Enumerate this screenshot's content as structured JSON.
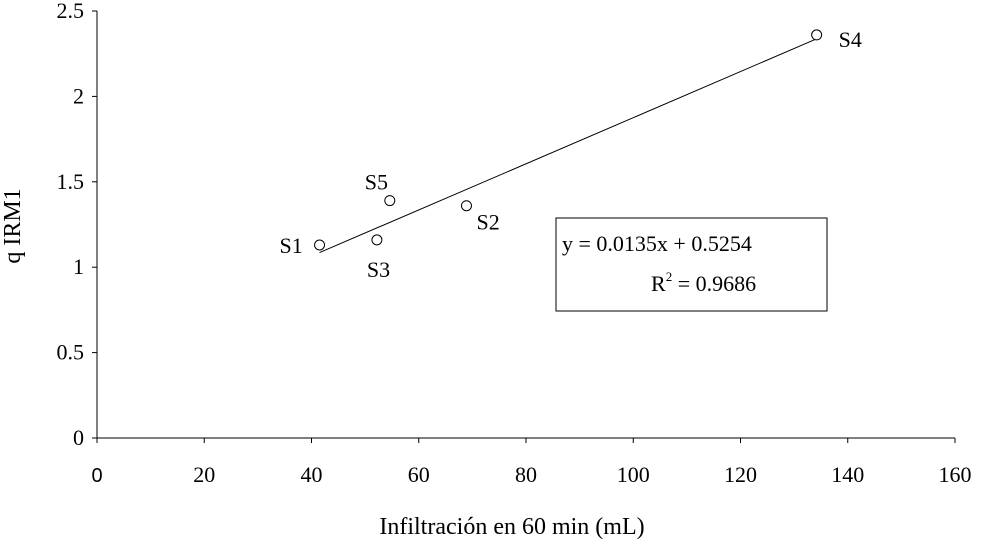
{
  "chart_data": {
    "type": "scatter",
    "title": "",
    "xlabel": "Infiltración en 60 min (mL)",
    "ylabel": "q IRM1",
    "xlim": [
      0,
      160
    ],
    "ylim": [
      0,
      2.5
    ],
    "x_ticks": [
      0,
      20,
      40,
      60,
      80,
      100,
      120,
      140,
      160
    ],
    "x_tick_labels": [
      "0",
      "20",
      "40",
      "60",
      "80",
      "100",
      "120",
      "140",
      "160"
    ],
    "y_ticks": [
      0,
      0.5,
      1,
      1.5,
      2,
      2.5
    ],
    "y_tick_labels": [
      "0",
      "0.5",
      "1",
      "1.5",
      "2",
      "2.5"
    ],
    "grid": false,
    "points": [
      {
        "label": "S1",
        "x": 41.5,
        "y": 1.13
      },
      {
        "label": "S3",
        "x": 52.2,
        "y": 1.16
      },
      {
        "label": "S5",
        "x": 54.6,
        "y": 1.39
      },
      {
        "label": "S2",
        "x": 68.9,
        "y": 1.36
      },
      {
        "label": "S4",
        "x": 134.2,
        "y": 2.36
      }
    ],
    "trendline": {
      "type": "linear",
      "slope": 0.0135,
      "intercept": 0.5254,
      "x_range": [
        41.5,
        134.2
      ],
      "equation_text": "y = 0.0135x + 0.5254",
      "r2_prefix": "R",
      "r2_sup": "2",
      "r2_suffix": " = 0.9686"
    }
  }
}
